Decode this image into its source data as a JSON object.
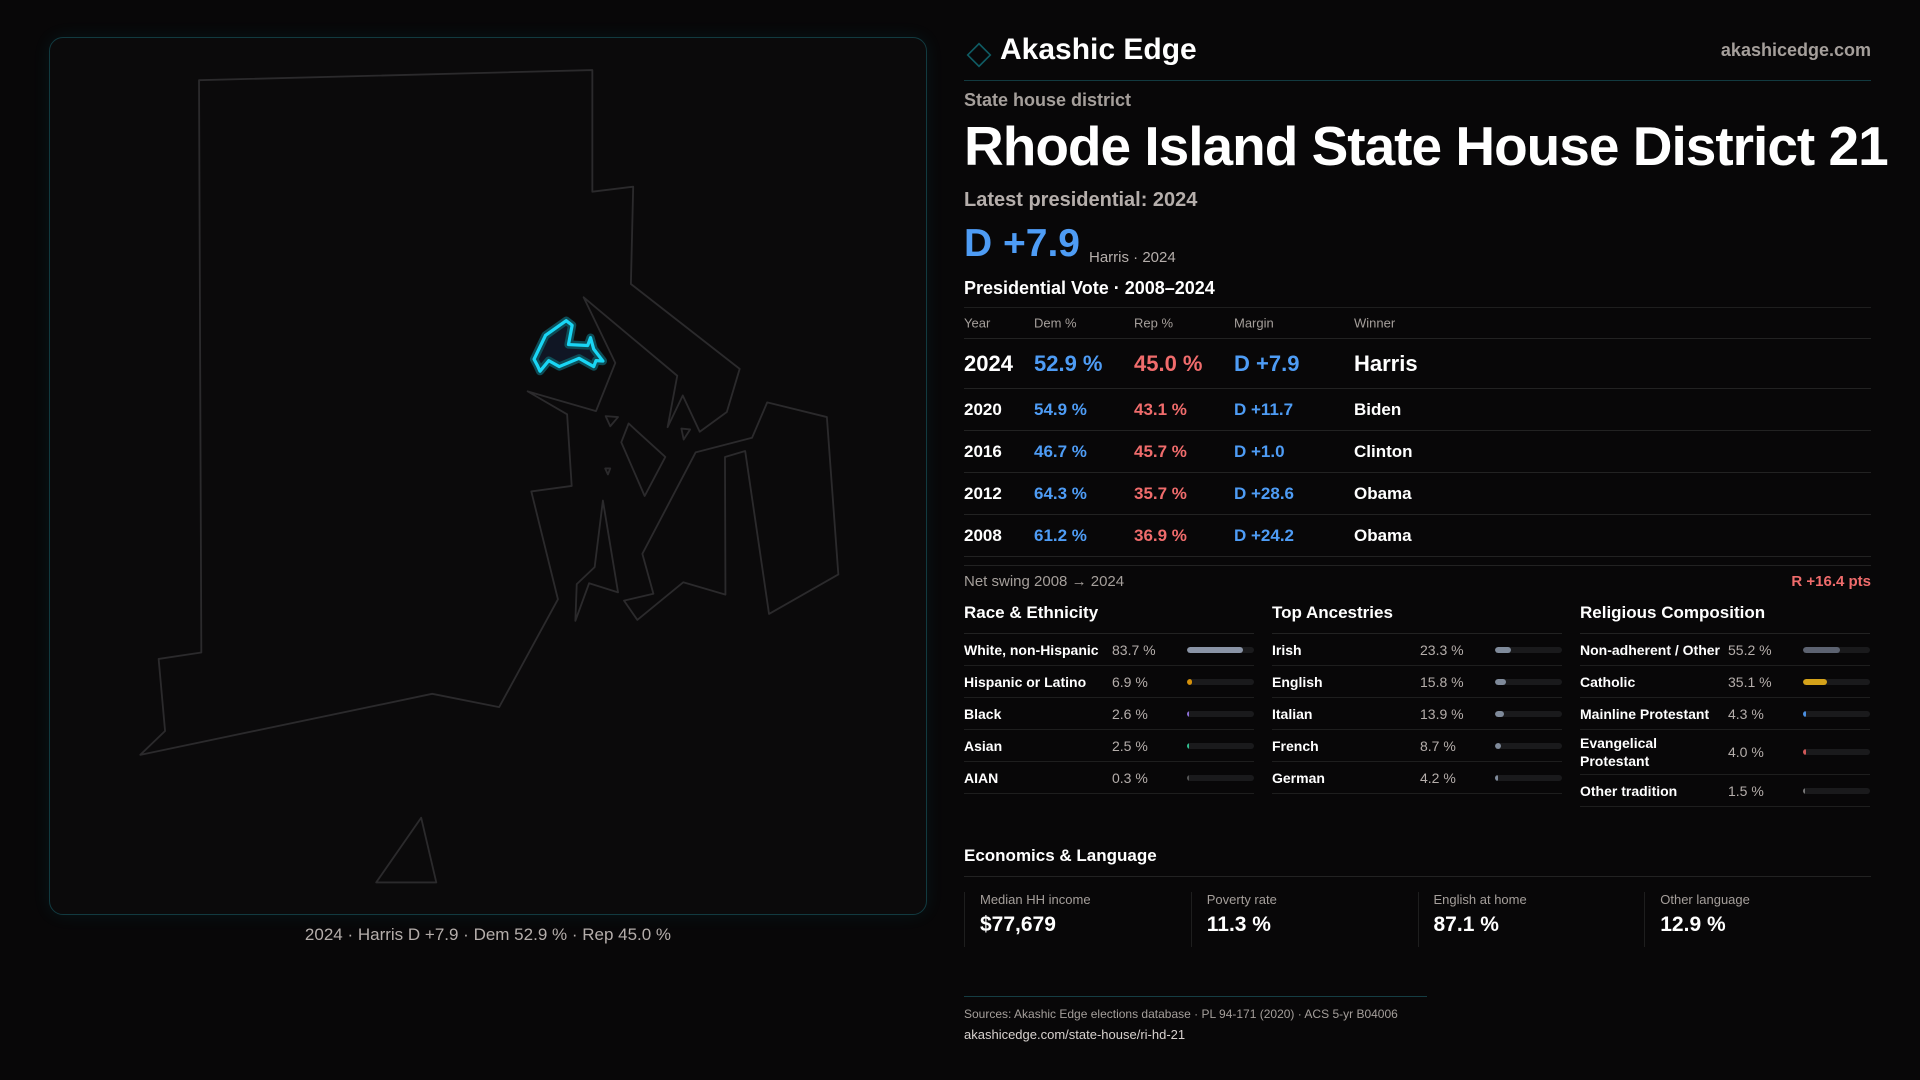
{
  "brand": {
    "name": "Akashic Edge",
    "site": "akashicedge.com"
  },
  "kicker": "State house district",
  "title": "Rhode Island State House District 21",
  "latest": "Latest presidential: 2024",
  "headline": {
    "margin": "D +7.9",
    "sub": "Harris · 2024"
  },
  "table": {
    "title": "Presidential Vote · 2008–2024",
    "headers": [
      "Year",
      "Dem %",
      "Rep %",
      "Margin",
      "Winner"
    ],
    "rows": [
      [
        "2024",
        "52.9 %",
        "45.0 %",
        "D +7.9",
        "Harris"
      ],
      [
        "2020",
        "54.9 %",
        "43.1 %",
        "D +11.7",
        "Biden"
      ],
      [
        "2016",
        "46.7 %",
        "45.7 %",
        "D +1.0",
        "Clinton"
      ],
      [
        "2012",
        "64.3 %",
        "35.7 %",
        "D +28.6",
        "Obama"
      ],
      [
        "2008",
        "61.2 %",
        "36.9 %",
        "D +24.2",
        "Obama"
      ]
    ]
  },
  "swing": {
    "label": "Net swing 2008 → 2024",
    "value": "R +16.4 pts"
  },
  "sections": [
    {
      "title": "Race & Ethnicity",
      "items": [
        {
          "label": "White, non-Hispanic",
          "value": "83.7 %",
          "pct": 83.7,
          "color": "#8a94a6"
        },
        {
          "label": "Hispanic or Latino",
          "value": "6.9 %",
          "pct": 6.9,
          "color": "#d4900a"
        },
        {
          "label": "Black",
          "value": "2.6 %",
          "pct": 2.6,
          "color": "#8b6fd6"
        },
        {
          "label": "Asian",
          "value": "2.5 %",
          "pct": 2.5,
          "color": "#2fbf8f"
        },
        {
          "label": "AIAN",
          "value": "0.3 %",
          "pct": 0.3,
          "color": "#555"
        }
      ]
    },
    {
      "title": "Top Ancestries",
      "items": [
        {
          "label": "Irish",
          "value": "23.3 %",
          "pct": 23.3,
          "color": "#7f8a9a"
        },
        {
          "label": "English",
          "value": "15.8 %",
          "pct": 15.8,
          "color": "#7f8a9a"
        },
        {
          "label": "Italian",
          "value": "13.9 %",
          "pct": 13.9,
          "color": "#7f8a9a"
        },
        {
          "label": "French",
          "value": "8.7 %",
          "pct": 8.7,
          "color": "#7f8a9a"
        },
        {
          "label": "German",
          "value": "4.2 %",
          "pct": 4.2,
          "color": "#7f8a9a"
        }
      ]
    },
    {
      "title": "Religious Composition",
      "items": [
        {
          "label": "Non-adherent / Other",
          "value": "55.2 %",
          "pct": 55.2,
          "color": "#5c6270"
        },
        {
          "label": "Catholic",
          "value": "35.1 %",
          "pct": 35.1,
          "color": "#d4a21a"
        },
        {
          "label": "Mainline Protestant",
          "value": "4.3 %",
          "pct": 4.3,
          "color": "#4a8ee0"
        },
        {
          "label": "Evangelical Protestant",
          "value": "4.0 %",
          "pct": 4.0,
          "color": "#d05858"
        },
        {
          "label": "Other tradition",
          "value": "1.5 %",
          "pct": 1.5,
          "color": "#777"
        }
      ]
    }
  ],
  "economics": {
    "title": "Economics & Language",
    "items": [
      {
        "label": "Median HH income",
        "value": "$77,679"
      },
      {
        "label": "Poverty rate",
        "value": "11.3 %"
      },
      {
        "label": "English at home",
        "value": "87.1 %"
      },
      {
        "label": "Other language",
        "value": "12.9 %"
      }
    ]
  },
  "footer": {
    "sources": "Sources: Akashic Edge elections database · PL 94-171 (2020) · ACS 5-yr B04006",
    "url": "akashicedge.com/state-house/ri-hd-21"
  },
  "map": {
    "caption": "2024 · Harris D +7.9 · Dem 52.9 % · Rep 45.0 %",
    "highlight_color": "#19d6f5",
    "outline_color": "#2a2a2c"
  }
}
